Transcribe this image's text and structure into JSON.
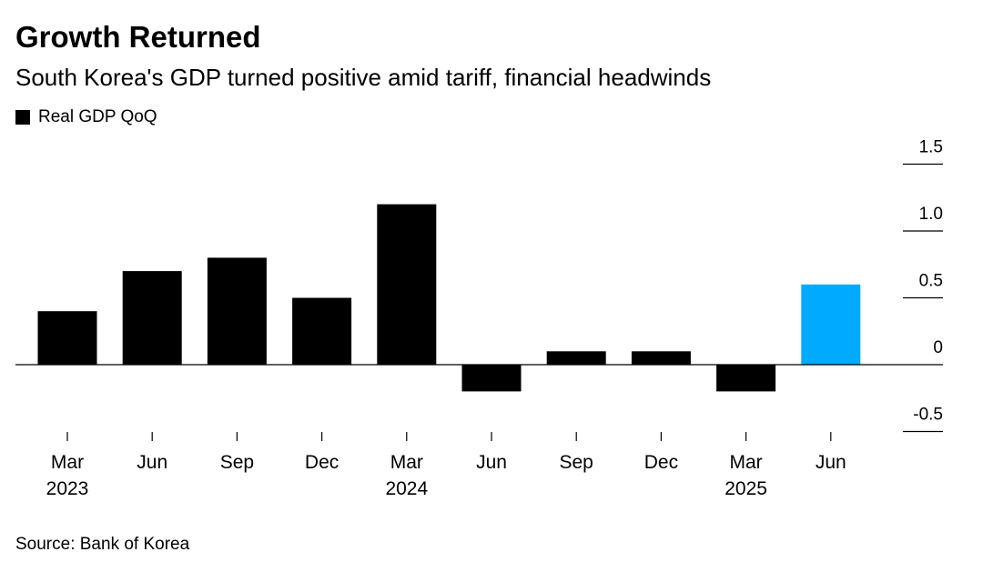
{
  "chart_data": {
    "type": "bar",
    "title": "Growth Returned",
    "subtitle": "South Korea's GDP turned positive amid tariff, financial headwinds",
    "legend": [
      {
        "label": "Real GDP QoQ",
        "color": "#000000"
      }
    ],
    "source": "Source: Bank of Korea",
    "categories": [
      "Mar 2023",
      "Jun 2023",
      "Sep 2023",
      "Dec 2023",
      "Mar 2024",
      "Jun 2024",
      "Sep 2024",
      "Dec 2024",
      "Mar 2025",
      "Jun 2025"
    ],
    "x_tick_labels": [
      {
        "line1": "Mar",
        "line2": "2023"
      },
      {
        "line1": "Jun",
        "line2": ""
      },
      {
        "line1": "Sep",
        "line2": ""
      },
      {
        "line1": "Dec",
        "line2": ""
      },
      {
        "line1": "Mar",
        "line2": "2024"
      },
      {
        "line1": "Jun",
        "line2": ""
      },
      {
        "line1": "Sep",
        "line2": ""
      },
      {
        "line1": "Dec",
        "line2": ""
      },
      {
        "line1": "Mar",
        "line2": "2025"
      },
      {
        "line1": "Jun",
        "line2": ""
      }
    ],
    "series": [
      {
        "name": "Real GDP QoQ",
        "values": [
          0.4,
          0.7,
          0.8,
          0.5,
          1.2,
          -0.2,
          0.1,
          0.1,
          -0.2,
          0.6
        ]
      }
    ],
    "bar_colors": [
      "#000000",
      "#000000",
      "#000000",
      "#000000",
      "#000000",
      "#000000",
      "#000000",
      "#000000",
      "#000000",
      "#00aaff"
    ],
    "y_ticks": [
      1.5,
      1.0,
      0.5,
      0,
      -0.5
    ],
    "y_tick_labels": [
      "1.5",
      "1.0",
      "0.5",
      "0",
      "-0.5"
    ],
    "ylim": [
      -0.5,
      1.5
    ],
    "y_axis_position": "right",
    "grid": false
  }
}
